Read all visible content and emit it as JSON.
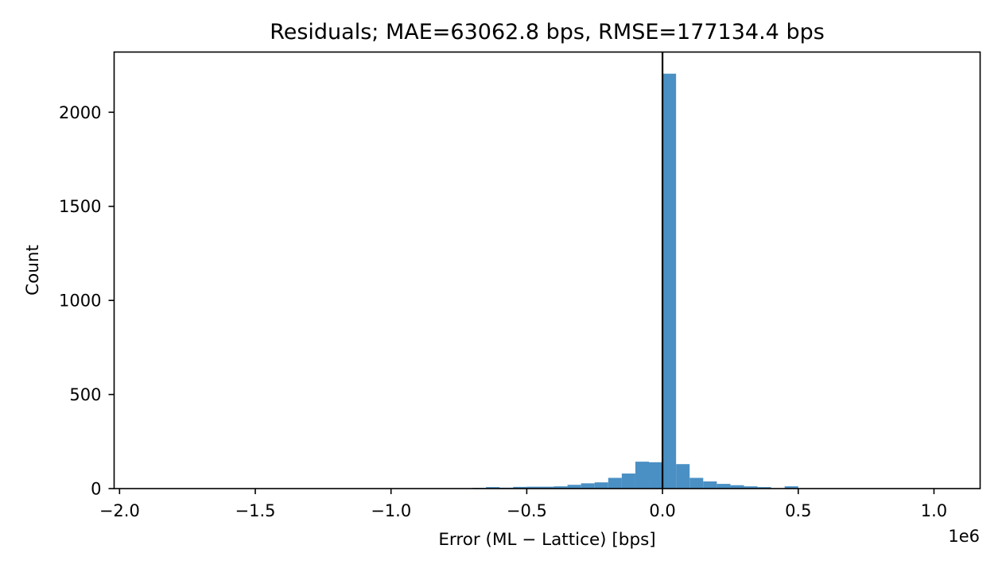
{
  "chart_data": {
    "type": "histogram",
    "title": "Residuals; MAE=63062.8 bps, RMSE=177134.4 bps",
    "xlabel": "Error (ML − Lattice) [bps]",
    "ylabel": "Count",
    "x_offset_label": "1e6",
    "x_scale": 1000000,
    "xlim": [
      -2.02,
      1.17
    ],
    "ylim": [
      0,
      2320
    ],
    "x_ticks": [
      -2.0,
      -1.5,
      -1.0,
      -0.5,
      0.0,
      0.5,
      1.0
    ],
    "x_tick_labels": [
      "−2.0",
      "−1.5",
      "−1.0",
      "−0.5",
      "0.0",
      "0.5",
      "1.0"
    ],
    "y_ticks": [
      0,
      500,
      1000,
      1500,
      2000
    ],
    "y_tick_labels": [
      "0",
      "500",
      "1000",
      "1500",
      "2000"
    ],
    "bar_color": "#4a90c4",
    "bins": [
      {
        "x0": -0.7,
        "x1": -0.65,
        "count": 4
      },
      {
        "x0": -0.65,
        "x1": -0.6,
        "count": 8
      },
      {
        "x0": -0.6,
        "x1": -0.55,
        "count": 5
      },
      {
        "x0": -0.55,
        "x1": -0.5,
        "count": 9
      },
      {
        "x0": -0.5,
        "x1": -0.45,
        "count": 10
      },
      {
        "x0": -0.45,
        "x1": -0.4,
        "count": 10
      },
      {
        "x0": -0.4,
        "x1": -0.35,
        "count": 12
      },
      {
        "x0": -0.35,
        "x1": -0.3,
        "count": 20
      },
      {
        "x0": -0.3,
        "x1": -0.25,
        "count": 28
      },
      {
        "x0": -0.25,
        "x1": -0.2,
        "count": 33
      },
      {
        "x0": -0.2,
        "x1": -0.15,
        "count": 57
      },
      {
        "x0": -0.15,
        "x1": -0.1,
        "count": 80
      },
      {
        "x0": -0.1,
        "x1": -0.05,
        "count": 143
      },
      {
        "x0": -0.05,
        "x1": 0.0,
        "count": 140
      },
      {
        "x0": 0.0,
        "x1": 0.05,
        "count": 2205
      },
      {
        "x0": 0.05,
        "x1": 0.1,
        "count": 130
      },
      {
        "x0": 0.1,
        "x1": 0.15,
        "count": 57
      },
      {
        "x0": 0.15,
        "x1": 0.2,
        "count": 38
      },
      {
        "x0": 0.2,
        "x1": 0.25,
        "count": 25
      },
      {
        "x0": 0.25,
        "x1": 0.3,
        "count": 18
      },
      {
        "x0": 0.3,
        "x1": 0.35,
        "count": 12
      },
      {
        "x0": 0.35,
        "x1": 0.4,
        "count": 8
      },
      {
        "x0": 0.45,
        "x1": 0.5,
        "count": 12
      },
      {
        "x0": 0.5,
        "x1": 0.55,
        "count": 2
      },
      {
        "x0": 0.55,
        "x1": 0.6,
        "count": 2
      }
    ],
    "reference_line": {
      "x": 0.0,
      "color": "#000000"
    }
  }
}
